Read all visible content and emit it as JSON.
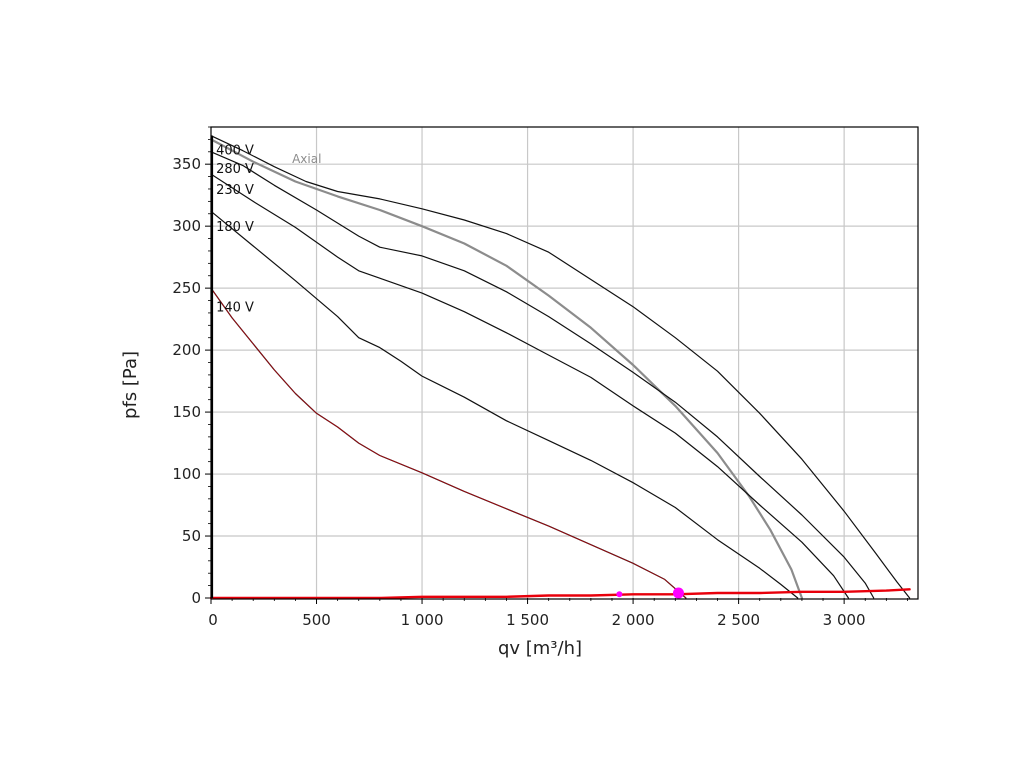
{
  "chart_data": {
    "type": "line",
    "xlabel": "qv [m³/h]",
    "ylabel": "pfs [Pa]",
    "xlim": [
      0,
      3350
    ],
    "ylim": [
      0,
      380
    ],
    "grid": true,
    "x_ticks": [
      {
        "value": 0,
        "label": "0"
      },
      {
        "value": 500,
        "label": "500"
      },
      {
        "value": 1000,
        "label": "1 000"
      },
      {
        "value": 1500,
        "label": "1 500"
      },
      {
        "value": 2000,
        "label": "2 000"
      },
      {
        "value": 2500,
        "label": "2 500"
      },
      {
        "value": 3000,
        "label": "3 000"
      }
    ],
    "y_ticks": [
      {
        "value": 0,
        "label": "0"
      },
      {
        "value": 50,
        "label": "50"
      },
      {
        "value": 100,
        "label": "100"
      },
      {
        "value": 150,
        "label": "150"
      },
      {
        "value": 200,
        "label": "200"
      },
      {
        "value": 250,
        "label": "250"
      },
      {
        "value": 300,
        "label": "300"
      },
      {
        "value": 350,
        "label": "350"
      }
    ],
    "colors": {
      "voltage_curves": "#111111",
      "axial_curve": "#8c8c8c",
      "system_curve": "#e8000b",
      "operating_point": "#ff00ff",
      "grid": "#c8c8c8"
    },
    "series": [
      {
        "name": "400 V",
        "color": "#111111",
        "width": 1.2,
        "x": [
          0,
          150,
          300,
          450,
          600,
          800,
          1000,
          1200,
          1400,
          1600,
          1800,
          2000,
          2200,
          2400,
          2600,
          2800,
          3000,
          3150,
          3250,
          3310
        ],
        "y": [
          373,
          361,
          348,
          336,
          328,
          322,
          314,
          305,
          294,
          279,
          257,
          235,
          210,
          183,
          149,
          112,
          70,
          36,
          13,
          0
        ]
      },
      {
        "name": "280 V",
        "color": "#111111",
        "width": 1.2,
        "x": [
          0,
          150,
          300,
          500,
          700,
          800,
          1000,
          1200,
          1400,
          1600,
          1800,
          2000,
          2200,
          2400,
          2600,
          2800,
          3000,
          3100,
          3140
        ],
        "y": [
          360,
          349,
          333,
          313,
          292,
          283,
          276,
          264,
          247,
          227,
          205,
          182,
          158,
          130,
          98,
          67,
          33,
          12,
          0
        ]
      },
      {
        "name": "230 V",
        "color": "#111111",
        "width": 1.2,
        "x": [
          0,
          200,
          400,
          600,
          700,
          800,
          1000,
          1200,
          1400,
          1600,
          1800,
          2000,
          2200,
          2400,
          2600,
          2800,
          2950,
          3020
        ],
        "y": [
          342,
          320,
          299,
          275,
          264,
          258,
          246,
          231,
          214,
          196,
          178,
          155,
          133,
          106,
          75,
          45,
          18,
          0
        ]
      },
      {
        "name": "180 V",
        "color": "#111111",
        "width": 1.2,
        "x": [
          0,
          200,
          400,
          600,
          700,
          800,
          900,
          1000,
          1200,
          1400,
          1600,
          1800,
          2000,
          2200,
          2400,
          2600,
          2700,
          2780
        ],
        "y": [
          312,
          284,
          256,
          227,
          210,
          202,
          191,
          179,
          162,
          143,
          127,
          111,
          93,
          73,
          47,
          24,
          11,
          0
        ]
      },
      {
        "name": "140 V",
        "color": "#111111",
        "width": 1.2,
        "x": [
          0,
          100,
          200,
          300,
          400,
          500,
          600,
          700,
          800,
          1000,
          1200,
          1400,
          1600,
          1800,
          2000,
          2150,
          2250
        ],
        "y": [
          250,
          226,
          205,
          184,
          165,
          149,
          138,
          125,
          115,
          101,
          86,
          72,
          58,
          43,
          28,
          15,
          0
        ]
      },
      {
        "name": "Axial",
        "color": "#8c8c8c",
        "width": 2.2,
        "x": [
          0,
          200,
          400,
          600,
          800,
          1000,
          1200,
          1400,
          1600,
          1800,
          2000,
          2200,
          2400,
          2550,
          2650,
          2750,
          2800
        ],
        "y": [
          370,
          352,
          336,
          324,
          313,
          300,
          286,
          268,
          244,
          218,
          188,
          155,
          117,
          82,
          55,
          23,
          0
        ]
      },
      {
        "name": "",
        "color": "#e8000b",
        "width": 2.4,
        "x": [
          0,
          400,
          800,
          1000,
          1200,
          1400,
          1600,
          1800,
          2000,
          2200,
          2400,
          2600,
          2800,
          3000,
          3200,
          3310
        ],
        "y": [
          0,
          0,
          0,
          1,
          1,
          1,
          2,
          2,
          3,
          3,
          4,
          4,
          5,
          5,
          6,
          7
        ]
      }
    ],
    "series_labels": [
      {
        "text": "400 V",
        "x": 10,
        "y": 362
      },
      {
        "text": "280 V",
        "x": 10,
        "y": 347
      },
      {
        "text": "230 V",
        "x": 10,
        "y": 330
      },
      {
        "text": "180 V",
        "x": 10,
        "y": 300
      },
      {
        "text": "140 V",
        "x": 10,
        "y": 235
      },
      {
        "text": "Axial",
        "x": 370,
        "y": 355
      }
    ],
    "markers": [
      {
        "name": "operating-point",
        "x": 2215,
        "y": 4,
        "size": "large"
      },
      {
        "name": "operating-point-small",
        "x": 1935,
        "y": 3,
        "size": "small"
      }
    ]
  }
}
